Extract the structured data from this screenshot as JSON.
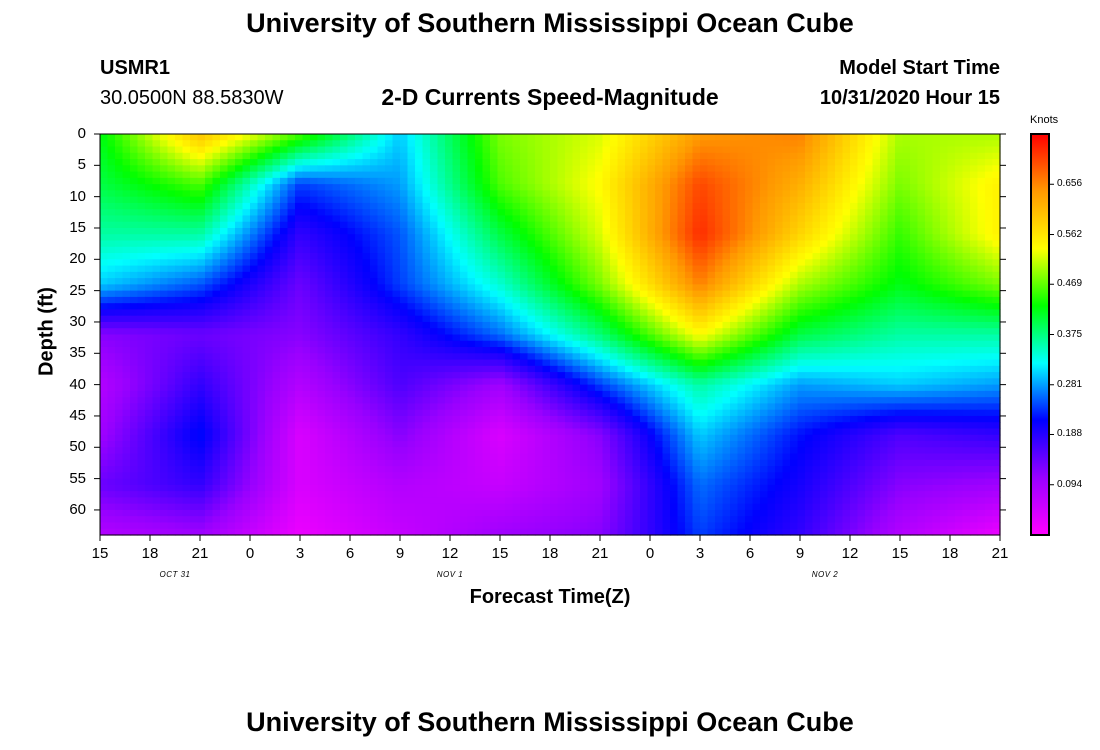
{
  "page_title": "University of Southern Mississippi Ocean Cube",
  "station": {
    "id": "USMR1",
    "coords": "30.0500N 88.5830W"
  },
  "chart_title": "2-D Currents Speed-Magnitude",
  "model_start": {
    "label": "Model Start Time",
    "value": "10/31/2020 Hour 15"
  },
  "footer_title": "University of Southern Mississippi Ocean Cube",
  "chart_data": {
    "type": "heatmap",
    "title": "2-D Currents Speed-Magnitude",
    "xlabel": "Forecast Time(Z)",
    "ylabel": "Depth (ft)",
    "x_ticks": [
      "15",
      "18",
      "21",
      "0",
      "3",
      "6",
      "9",
      "12",
      "15",
      "18",
      "21",
      "0",
      "3",
      "6",
      "9",
      "12",
      "15",
      "18",
      "21"
    ],
    "x_range_hours": [
      0,
      54
    ],
    "date_labels": [
      {
        "text": "OCT 31",
        "hour": 4.5
      },
      {
        "text": "NOV 1",
        "hour": 21
      },
      {
        "text": "NOV 2",
        "hour": 43.5
      }
    ],
    "y_ticks": [
      "0",
      "5",
      "10",
      "15",
      "20",
      "25",
      "30",
      "35",
      "40",
      "45",
      "50",
      "55",
      "60"
    ],
    "y_range_ft": [
      0,
      64
    ],
    "colorbar": {
      "unit": "Knots",
      "range": [
        0,
        0.75
      ],
      "ticks": [
        "0.656",
        "0.562",
        "0.469",
        "0.375",
        "0.281",
        "0.188",
        "0.094"
      ],
      "tick_values": [
        0.656,
        0.562,
        0.469,
        0.375,
        0.281,
        0.188,
        0.094
      ],
      "colors": [
        "#ff00ff",
        "#9900ff",
        "#0000ff",
        "#00ffff",
        "#00ff00",
        "#ffff00",
        "#ff9900",
        "#ff0000"
      ]
    },
    "grid_hours": [
      0,
      6,
      12,
      18,
      24,
      30,
      36,
      42,
      48,
      54
    ],
    "grid_depths": [
      0,
      8,
      16,
      24,
      32,
      40,
      48,
      56,
      64
    ],
    "speed_knots": [
      [
        0.42,
        0.6,
        0.46,
        0.3,
        0.48,
        0.52,
        0.64,
        0.66,
        0.5,
        0.5
      ],
      [
        0.4,
        0.46,
        0.24,
        0.28,
        0.46,
        0.54,
        0.7,
        0.62,
        0.48,
        0.55
      ],
      [
        0.36,
        0.36,
        0.18,
        0.25,
        0.4,
        0.52,
        0.72,
        0.58,
        0.45,
        0.55
      ],
      [
        0.3,
        0.25,
        0.14,
        0.24,
        0.34,
        0.48,
        0.66,
        0.5,
        0.42,
        0.48
      ],
      [
        0.12,
        0.14,
        0.12,
        0.18,
        0.26,
        0.38,
        0.54,
        0.4,
        0.36,
        0.36
      ],
      [
        0.08,
        0.18,
        0.08,
        0.16,
        0.1,
        0.24,
        0.36,
        0.28,
        0.3,
        0.28
      ],
      [
        0.1,
        0.22,
        0.04,
        0.12,
        0.04,
        0.12,
        0.3,
        0.22,
        0.16,
        0.18
      ],
      [
        0.14,
        0.18,
        0.04,
        0.08,
        0.06,
        0.1,
        0.26,
        0.2,
        0.12,
        0.1
      ],
      [
        0.08,
        0.1,
        0.02,
        0.06,
        0.1,
        0.12,
        0.24,
        0.18,
        0.08,
        0.02
      ]
    ]
  }
}
